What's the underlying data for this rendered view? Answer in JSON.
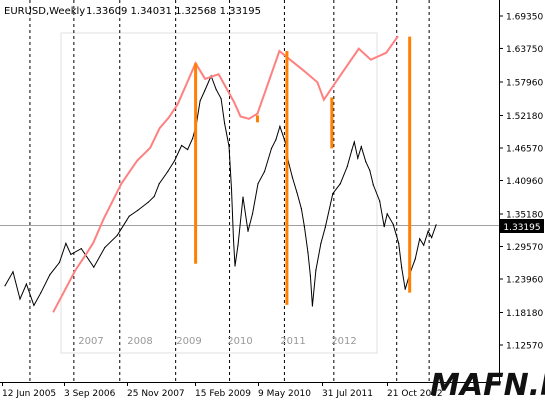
{
  "chart_data": {
    "type": "line",
    "title": "EURUSD,Weekly",
    "ohlc": "1.33609 1.34031 1.32568 1.33195",
    "price_axis": {
      "ticks": [
        1.6935,
        1.6375,
        1.5796,
        1.5218,
        1.4657,
        1.4096,
        1.3518,
        1.2957,
        1.2396,
        1.1818,
        1.1257
      ],
      "labels": [
        "1.69350",
        "1.63750",
        "1.57960",
        "1.52180",
        "1.46570",
        "1.40960",
        "1.35180",
        "1.29570",
        "1.23960",
        "1.18180",
        "1.12570"
      ],
      "current_price": 1.33195,
      "current_label": "1.33195",
      "range": [
        1.1,
        1.72
      ]
    },
    "time_axis": {
      "labels": [
        "12 Jun 2005",
        "3 Sep 2006",
        "25 Nov 2007",
        "15 Feb 2009",
        "9 May 2010",
        "31 Jul 2011",
        "21 Oct 2012"
      ]
    },
    "inner_year_labels": [
      "2007",
      "2008",
      "2009",
      "2010",
      "2011",
      "2012"
    ],
    "price_series": {
      "name": "",
      "color": "#000000",
      "points": [
        [
          1.0,
          1.228
        ],
        [
          2.6,
          1.252
        ],
        [
          4.0,
          1.205
        ],
        [
          5.3,
          1.231
        ],
        [
          6.8,
          1.194
        ],
        [
          8.2,
          1.216
        ],
        [
          10.0,
          1.247
        ],
        [
          11.9,
          1.268
        ],
        [
          13.2,
          1.301
        ],
        [
          14.2,
          1.282
        ],
        [
          16.3,
          1.292
        ],
        [
          18.8,
          1.26
        ],
        [
          21.0,
          1.294
        ],
        [
          23.5,
          1.315
        ],
        [
          25.9,
          1.348
        ],
        [
          27.6,
          1.358
        ],
        [
          29.7,
          1.372
        ],
        [
          30.9,
          1.382
        ],
        [
          31.9,
          1.404
        ],
        [
          33.6,
          1.425
        ],
        [
          35.0,
          1.444
        ],
        [
          36.4,
          1.47
        ],
        [
          37.6,
          1.463
        ],
        [
          38.6,
          1.482
        ],
        [
          39.3,
          1.504
        ],
        [
          40.1,
          1.547
        ],
        [
          41.0,
          1.564
        ],
        [
          42.3,
          1.59
        ],
        [
          43.3,
          1.567
        ],
        [
          44.3,
          1.551
        ],
        [
          45.0,
          1.508
        ],
        [
          45.9,
          1.469
        ],
        [
          46.4,
          1.395
        ],
        [
          46.8,
          1.307
        ],
        [
          47.1,
          1.262
        ],
        [
          47.7,
          1.298
        ],
        [
          48.7,
          1.381
        ],
        [
          49.7,
          1.322
        ],
        [
          50.6,
          1.352
        ],
        [
          51.7,
          1.404
        ],
        [
          53.0,
          1.425
        ],
        [
          54.4,
          1.465
        ],
        [
          55.3,
          1.48
        ],
        [
          56.1,
          1.503
        ],
        [
          57.2,
          1.475
        ],
        [
          57.8,
          1.442
        ],
        [
          58.6,
          1.415
        ],
        [
          59.5,
          1.389
        ],
        [
          60.4,
          1.361
        ],
        [
          61.0,
          1.33
        ],
        [
          61.7,
          1.286
        ],
        [
          62.2,
          1.245
        ],
        [
          62.6,
          1.193
        ],
        [
          63.3,
          1.255
        ],
        [
          64.3,
          1.301
        ],
        [
          65.2,
          1.329
        ],
        [
          66.7,
          1.387
        ],
        [
          68.2,
          1.404
        ],
        [
          69.6,
          1.434
        ],
        [
          70.5,
          1.462
        ],
        [
          71.0,
          1.476
        ],
        [
          71.7,
          1.448
        ],
        [
          72.4,
          1.468
        ],
        [
          73.3,
          1.442
        ],
        [
          74.1,
          1.427
        ],
        [
          74.8,
          1.402
        ],
        [
          76.1,
          1.374
        ],
        [
          77.0,
          1.33
        ],
        [
          77.6,
          1.352
        ],
        [
          78.8,
          1.334
        ],
        [
          79.9,
          1.301
        ],
        [
          80.5,
          1.259
        ],
        [
          81.2,
          1.222
        ],
        [
          82.1,
          1.248
        ],
        [
          83.2,
          1.274
        ],
        [
          84.1,
          1.309
        ],
        [
          84.9,
          1.298
        ],
        [
          85.8,
          1.322
        ],
        [
          86.5,
          1.311
        ],
        [
          87.4,
          1.333
        ]
      ]
    },
    "peak_series": {
      "name": "",
      "color": "#ff8080",
      "points": [
        [
          10.7,
          1.183
        ],
        [
          15.2,
          1.256
        ],
        [
          17.0,
          1.279
        ],
        [
          18.7,
          1.302
        ],
        [
          20.8,
          1.344
        ],
        [
          24.3,
          1.404
        ],
        [
          27.5,
          1.444
        ],
        [
          30.1,
          1.466
        ],
        [
          32.0,
          1.5
        ],
        [
          33.8,
          1.518
        ],
        [
          35.6,
          1.541
        ],
        [
          39.2,
          1.612
        ],
        [
          41.1,
          1.585
        ],
        [
          43.8,
          1.593
        ],
        [
          46.9,
          1.545
        ],
        [
          48.2,
          1.52
        ],
        [
          49.9,
          1.516
        ],
        [
          51.6,
          1.525
        ],
        [
          56.0,
          1.633
        ],
        [
          60.9,
          1.599
        ],
        [
          63.6,
          1.579
        ],
        [
          64.9,
          1.549
        ],
        [
          67.5,
          1.582
        ],
        [
          71.9,
          1.637
        ],
        [
          74.3,
          1.618
        ],
        [
          77.4,
          1.63
        ],
        [
          79.7,
          1.658
        ]
      ]
    },
    "drop_bars": {
      "color": "#ff8000",
      "bars": [
        {
          "x": 39.2,
          "top": 1.612,
          "bottom": 1.266
        },
        {
          "x": 51.6,
          "top": 1.522,
          "bottom": 1.51
        },
        {
          "x": 57.5,
          "top": 1.633,
          "bottom": 1.195
        },
        {
          "x": 66.5,
          "top": 1.553,
          "bottom": 1.465
        },
        {
          "x": 82.1,
          "top": 1.658,
          "bottom": 1.216
        }
      ]
    },
    "vertical_dashed_at": [
      6,
      14.8,
      24,
      35.2,
      46,
      57,
      66.9,
      79.5,
      86
    ],
    "watermark": "MAFN.RU",
    "grid": false,
    "legend": "none"
  }
}
